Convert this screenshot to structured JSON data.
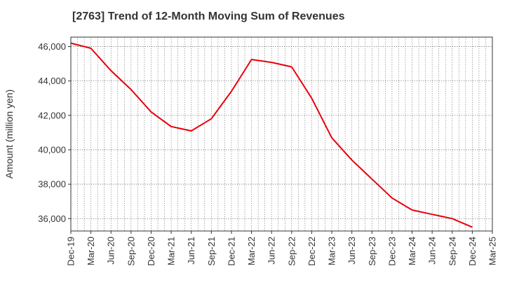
{
  "chart_data": {
    "type": "line",
    "title": "[2763]  Trend of 12-Month Moving Sum of Revenues",
    "xlabel": "",
    "ylabel": "Amount (million yen)",
    "categories": [
      "Dec-19",
      "Mar-20",
      "Jun-20",
      "Sep-20",
      "Dec-20",
      "Mar-21",
      "Jun-21",
      "Sep-21",
      "Dec-21",
      "Mar-22",
      "Jun-22",
      "Sep-22",
      "Dec-22",
      "Mar-23",
      "Jun-23",
      "Sep-23",
      "Dec-23",
      "Mar-24",
      "Jun-24",
      "Sep-24",
      "Dec-24",
      "Mar-25"
    ],
    "series": [
      {
        "name": "",
        "color": "#e8000b",
        "values": [
          46200,
          45900,
          44600,
          43500,
          42200,
          41350,
          41100,
          41800,
          43400,
          45250,
          45080,
          44820,
          43000,
          40700,
          39400,
          38300,
          37200,
          36500,
          36250,
          36000,
          35500,
          null
        ]
      }
    ],
    "ylim": [
      35280,
      46550
    ],
    "yticks": [
      36000,
      38000,
      40000,
      42000,
      44000,
      46000
    ],
    "ytick_labels": [
      "36,000",
      "38,000",
      "40,000",
      "42,000",
      "44,000",
      "46,000"
    ],
    "grid": true
  }
}
